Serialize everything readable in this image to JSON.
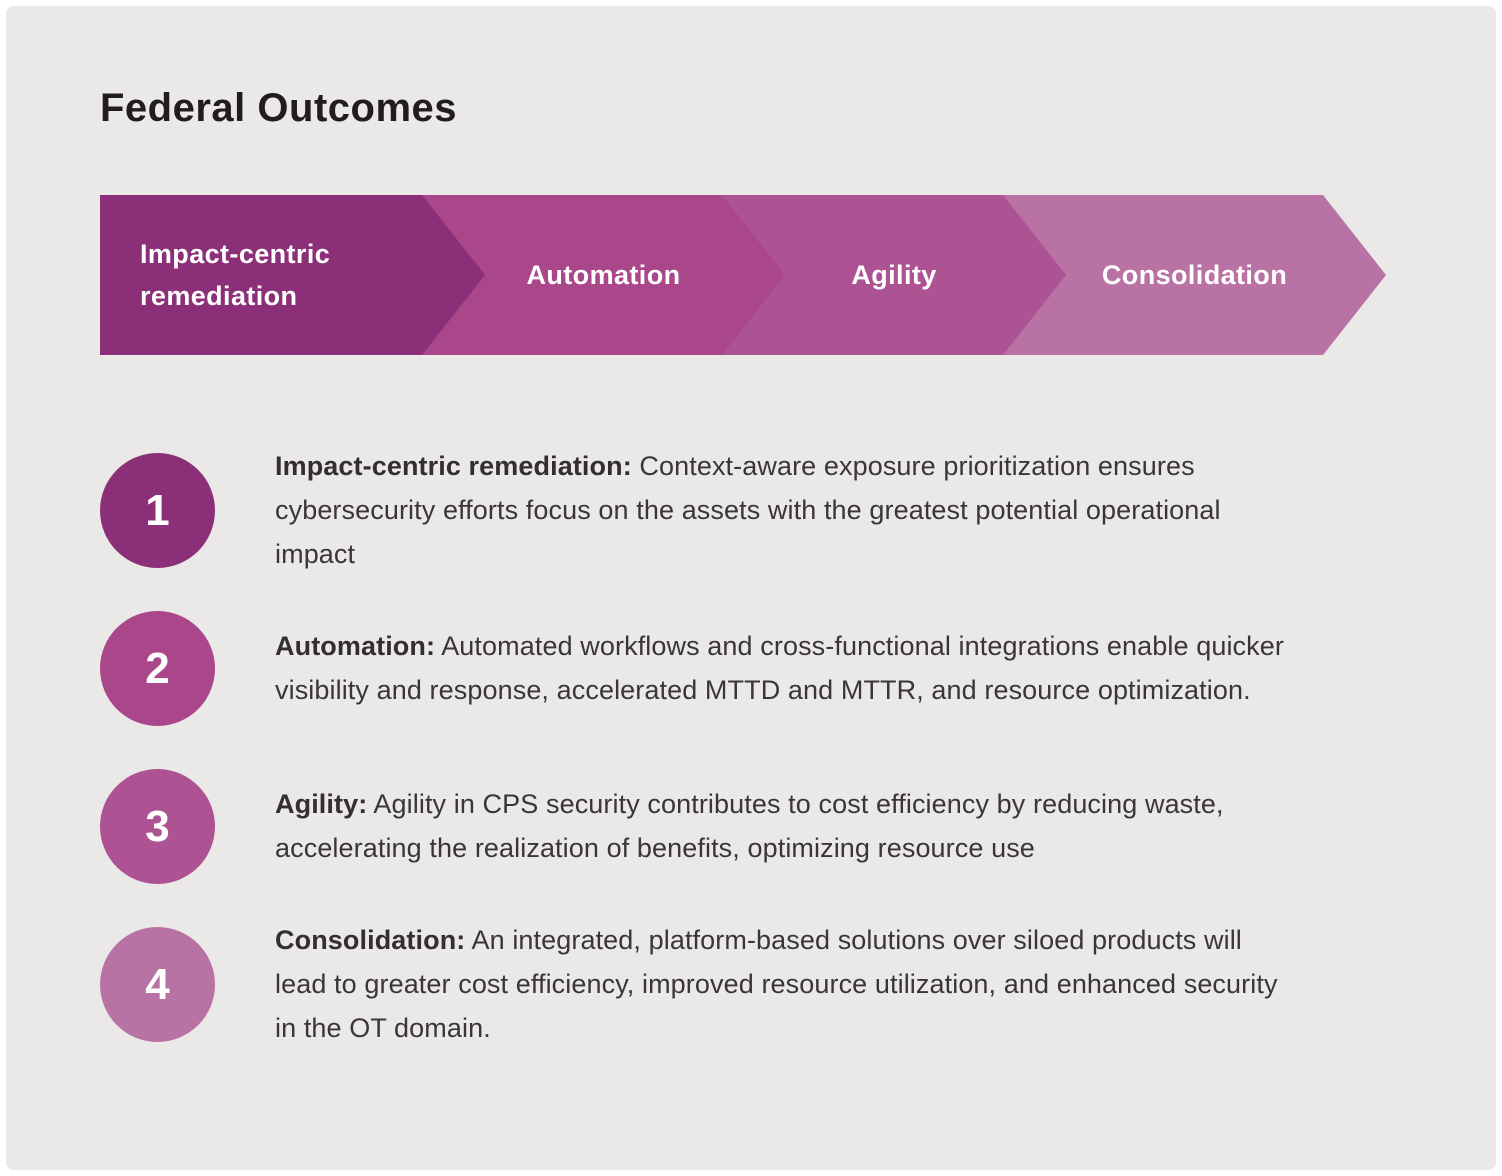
{
  "title": "Federal Outcomes",
  "colors": {
    "canvas_background": "#eae9e7",
    "frame": "#ffffff",
    "title_text": "#211d1e",
    "body_text": "#3a3637",
    "banner_label_text": "#ffffff",
    "stage1": "#8b3078",
    "stage2": "#a9478a",
    "stage3": "#ad5292",
    "stage4": "#b872a3"
  },
  "process_banner": {
    "segments": [
      {
        "label": "Impact-centric remediation",
        "color": "#8b3078"
      },
      {
        "label": "Automation",
        "color": "#a9478a"
      },
      {
        "label": "Agility",
        "color": "#ad5292"
      },
      {
        "label": "Consolidation",
        "color": "#b872a3"
      }
    ]
  },
  "outcomes": [
    {
      "number": "1",
      "color": "#8b3078",
      "lead": "Impact-centric remediation:",
      "text": "Context-aware exposure prioritization ensures cybersecurity efforts focus on the assets with the greatest potential operational impact"
    },
    {
      "number": "2",
      "color": "#a9478a",
      "lead": "Automation:",
      "text": "Automated workflows and cross-functional integrations enable quicker visibility and response, accelerated MTTD and MTTR, and resource optimization."
    },
    {
      "number": "3",
      "color": "#ad5292",
      "lead": "Agility:",
      "text": "Agility in CPS security contributes to cost efficiency by reducing waste, accelerating the realization of benefits, optimizing resource use"
    },
    {
      "number": "4",
      "color": "#b872a3",
      "lead": "Consolidation:",
      "text": "An integrated, platform-based solutions over siloed products will lead to greater cost efficiency, improved resource utilization, and enhanced security in the OT domain."
    }
  ]
}
